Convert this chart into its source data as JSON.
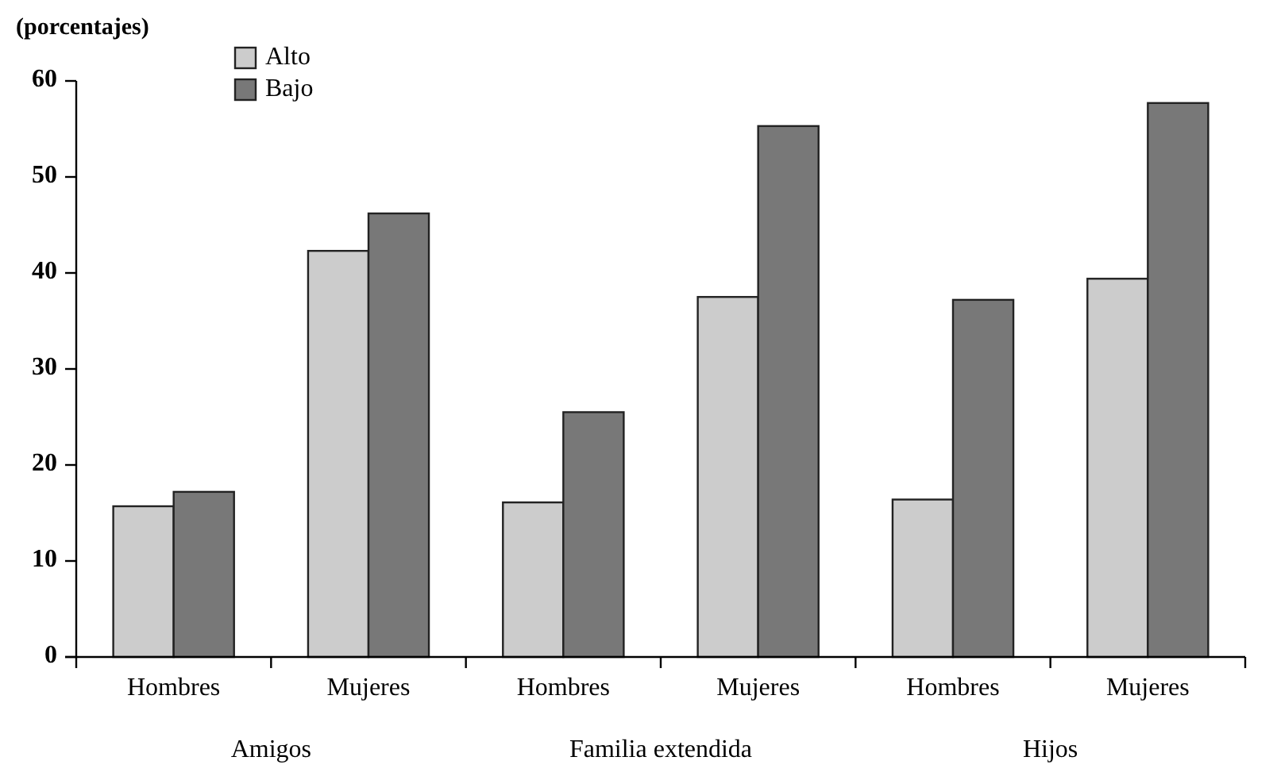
{
  "chart_data": {
    "type": "bar",
    "ylabel": "(porcentajes)",
    "categories": [
      "Hombres",
      "Mujeres",
      "Hombres",
      "Mujeres",
      "Hombres",
      "Mujeres"
    ],
    "series": [
      {
        "name": "Alto",
        "color": "#cccccc",
        "values": [
          15.7,
          42.3,
          16.1,
          37.5,
          16.4,
          39.4
        ]
      },
      {
        "name": "Bajo",
        "color": "#787878",
        "values": [
          17.2,
          46.2,
          25.5,
          55.3,
          37.2,
          57.7
        ]
      }
    ],
    "annotations": [
      "Amigos",
      "Familia extendida",
      "Hijos"
    ],
    "ylim": [
      0,
      60
    ],
    "yticks": [
      0,
      10,
      20,
      30,
      40,
      50,
      60
    ],
    "grid": false,
    "legend": "top left"
  }
}
